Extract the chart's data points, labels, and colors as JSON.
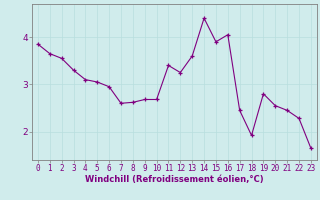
{
  "x": [
    0,
    1,
    2,
    3,
    4,
    5,
    6,
    7,
    8,
    9,
    10,
    11,
    12,
    13,
    14,
    15,
    16,
    17,
    18,
    19,
    20,
    21,
    22,
    23
  ],
  "y": [
    3.85,
    3.65,
    3.55,
    3.3,
    3.1,
    3.05,
    2.95,
    2.6,
    2.62,
    2.68,
    2.68,
    3.4,
    3.25,
    3.6,
    4.4,
    3.9,
    4.05,
    2.45,
    1.92,
    2.8,
    2.55,
    2.45,
    2.28,
    1.65
  ],
  "line_color": "#800080",
  "marker": "+",
  "marker_size": 3.5,
  "linewidth": 0.8,
  "xlabel": "Windchill (Refroidissement éolien,°C)",
  "xlabel_fontsize": 6,
  "ylim": [
    1.4,
    4.7
  ],
  "xlim": [
    -0.5,
    23.5
  ],
  "yticks": [
    2,
    3,
    4
  ],
  "xticks": [
    0,
    1,
    2,
    3,
    4,
    5,
    6,
    7,
    8,
    9,
    10,
    11,
    12,
    13,
    14,
    15,
    16,
    17,
    18,
    19,
    20,
    21,
    22,
    23
  ],
  "tick_fontsize": 5.5,
  "ytick_fontsize": 6.5,
  "grid_color": "#b8dede",
  "bg_color": "#d0ecec",
  "spine_color": "#808080"
}
